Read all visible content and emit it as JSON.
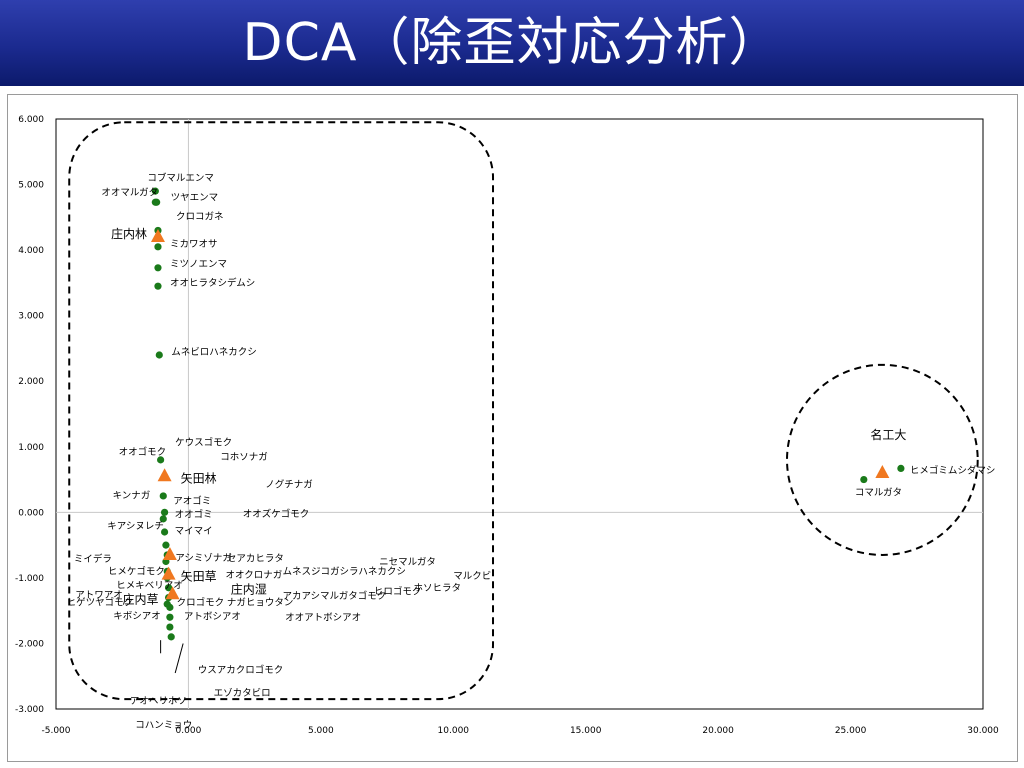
{
  "header": {
    "title": "DCA（除歪対応分析）"
  },
  "chart_data": {
    "type": "scatter",
    "title": "",
    "xlabel": "",
    "ylabel": "",
    "xlim": [
      -5,
      30
    ],
    "ylim": [
      -3,
      6
    ],
    "x_ticks": [
      "-5.000",
      "0.000",
      "5.000",
      "10.000",
      "15.000",
      "20.000",
      "25.000",
      "30.000"
    ],
    "y_ticks": [
      "6.000",
      "5.000",
      "4.000",
      "3.000",
      "2.000",
      "1.000",
      "0.000",
      "-1.000",
      "-2.000",
      "-3.000"
    ],
    "grid": false,
    "legend": "none",
    "colors": {
      "species": "#1a7a1a",
      "sites": "#f07820",
      "reference_lines": "#c8c8c8",
      "groups": "#000000"
    },
    "groups": [
      {
        "shape": "rounded-rect",
        "x_range": [
          -4.5,
          11.5
        ],
        "y_range": [
          -2.85,
          5.95
        ]
      },
      {
        "shape": "circle",
        "center": [
          26.2,
          0.8
        ],
        "radius": [
          3.6,
          1.45
        ]
      }
    ],
    "series": [
      {
        "marker": "circle",
        "points": [
          {
            "x": -1.25,
            "y": 4.9,
            "label": "コブマルエンマ"
          },
          {
            "x": -1.25,
            "y": 4.73,
            "label": "オオマルガタ"
          },
          {
            "x": -1.2,
            "y": 4.73,
            "label": "ツヤエンマ"
          },
          {
            "x": -1.15,
            "y": 4.3,
            "label": "クロコガネ"
          },
          {
            "x": -1.15,
            "y": 4.05,
            "label": "ミカワオサ"
          },
          {
            "x": -1.15,
            "y": 3.73,
            "label": "ミツノエンマ"
          },
          {
            "x": -1.15,
            "y": 3.45,
            "label": "オオヒラタシデムシ"
          },
          {
            "x": -1.1,
            "y": 2.4,
            "label": "ムネビロハネカクシ"
          },
          {
            "x": -1.05,
            "y": 0.8,
            "label": "オオゴモク"
          },
          {
            "x": -0.9,
            "y": 0.55,
            "label": "キンナガ"
          },
          {
            "x": -0.95,
            "y": 0.25,
            "label": "アオゴミ"
          },
          {
            "x": -0.9,
            "y": 0.0,
            "label": "オオゴミ"
          },
          {
            "x": -0.95,
            "y": -0.1,
            "label": "キアシヌレチ"
          },
          {
            "x": -0.9,
            "y": -0.3,
            "label": "マイマイ"
          },
          {
            "x": -0.85,
            "y": -0.5,
            "label": "ミイデラ"
          },
          {
            "x": -0.8,
            "y": -0.65,
            "label": "アシミゾナガ"
          },
          {
            "x": -0.85,
            "y": -0.75,
            "label": "ヒメケゴモク"
          },
          {
            "x": -0.8,
            "y": -0.9,
            "label": "ヒメキベリアオ"
          },
          {
            "x": -0.8,
            "y": -1.0,
            "label": "アトワアオ"
          },
          {
            "x": -0.75,
            "y": -1.15,
            "label": "ヒゲツヤゴモク"
          },
          {
            "x": -0.75,
            "y": -1.3,
            "label": "クロゴモク"
          },
          {
            "x": -0.8,
            "y": -1.4,
            "label": "キボシアオ"
          },
          {
            "x": -0.7,
            "y": -1.45,
            "label": "アトボシアオ"
          },
          {
            "x": -0.7,
            "y": -1.6,
            "label": ""
          },
          {
            "x": -0.7,
            "y": -1.75,
            "label": "アオヘリホソ"
          },
          {
            "x": -0.65,
            "y": -1.9,
            "label": "コハンミョウ"
          },
          {
            "x": 25.5,
            "y": 0.5,
            "label": "コマルガタ"
          },
          {
            "x": 26.9,
            "y": 0.67,
            "label": "ヒメゴミムシダマシ"
          }
        ]
      },
      {
        "marker": "triangle",
        "points": [
          {
            "x": -1.15,
            "y": 4.2,
            "label": "庄内林"
          },
          {
            "x": -0.9,
            "y": 0.55,
            "label": "矢田林"
          },
          {
            "x": -0.75,
            "y": -0.95,
            "label": "矢田草"
          },
          {
            "x": -0.6,
            "y": -1.25,
            "label": "庄内草"
          },
          {
            "x": -0.7,
            "y": -0.65,
            "label": ""
          },
          {
            "x": 26.2,
            "y": 0.6,
            "label": "名工大"
          }
        ]
      }
    ],
    "annotations": [
      "ケウスゴモク",
      "コホソナガ",
      "ノグチナガ",
      "オオズケゴモク",
      "セアカヒラタ",
      "オオクロナガ",
      "庄内湿",
      "ナガヒョウタン",
      "ムネスジコガシラハネカクシ",
      "ニセマルガタ",
      "アカアシマルガタゴモク",
      "ヒロゴモク",
      "ホソヒラタ",
      "マルクビ",
      "オオアトボシアオ",
      "ウスアカクロゴモク",
      "エゾカタビロ"
    ]
  }
}
